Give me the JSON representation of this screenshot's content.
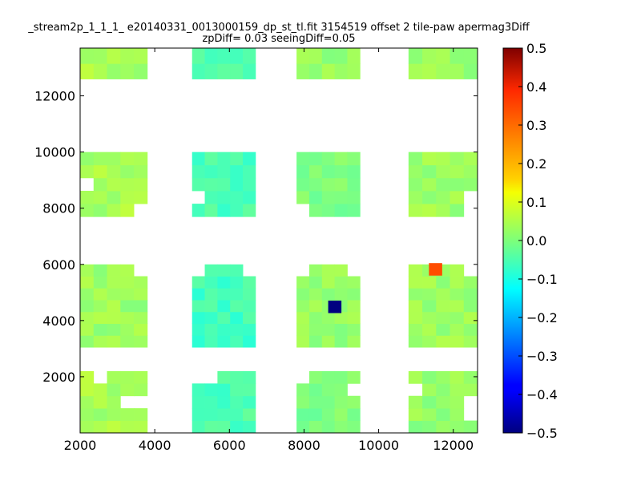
{
  "chart_data": {
    "type": "heatmap",
    "title_line1": "_stream2p_1_1_1_ e20140331_0013000159_dp_st_tl.fit 3154519 offset 2 tile-paw apermag3Diff",
    "title_line2": "zpDiff= 0.03 seeingDiff=0.05",
    "xlabel": "",
    "ylabel": "",
    "xlim": [
      2000,
      12650
    ],
    "ylim": [
      0,
      13700
    ],
    "x_ticks": [
      2000,
      4000,
      6000,
      8000,
      10000,
      12000
    ],
    "y_ticks": [
      2000,
      4000,
      6000,
      8000,
      10000,
      12000
    ],
    "x_tick_labels": [
      "2000",
      "4000",
      "6000",
      "8000",
      "10000",
      "12000"
    ],
    "y_tick_labels": [
      "2000",
      "4000",
      "6000",
      "8000",
      "10000",
      "12000"
    ],
    "cell_size": [
      355,
      445
    ],
    "colormap": "jet",
    "colorbar": {
      "range": [
        -0.5,
        0.5
      ],
      "ticks": [
        -0.5,
        -0.4,
        -0.3,
        -0.2,
        -0.1,
        0.0,
        0.1,
        0.2,
        0.3,
        0.4,
        0.5
      ],
      "tick_labels": [
        "−0.5",
        "−0.4",
        "−0.3",
        "−0.2",
        "−0.1",
        "0.0",
        "0.1",
        "0.2",
        "0.3",
        "0.4",
        "0.5"
      ]
    },
    "outliers": [
      {
        "x": 8825,
        "y": 4488,
        "value": -0.5
      },
      {
        "x": 11525,
        "y": 5823,
        "value": 0.3
      }
    ],
    "tiles": [
      {
        "x0": 2000,
        "y0": 0,
        "x1": 3800,
        "y1": 2200,
        "pattern": 1,
        "value": 0.04,
        "missing": [
          [
            1,
            4
          ],
          [
            3,
            2
          ],
          [
            4,
            2
          ]
        ]
      },
      {
        "x0": 5000,
        "y0": 0,
        "x1": 6700,
        "y1": 2200,
        "pattern": 2,
        "value": -0.05,
        "missing": [
          [
            0,
            4
          ],
          [
            1,
            4
          ]
        ]
      },
      {
        "x0": 7800,
        "y0": 0,
        "x1": 9500,
        "y1": 2200,
        "pattern": 3,
        "value": 0.0,
        "missing": [
          [
            0,
            4
          ],
          [
            4,
            3
          ]
        ]
      },
      {
        "x0": 10800,
        "y0": 0,
        "x1": 12650,
        "y1": 2200,
        "pattern": 4,
        "value": 0.02,
        "missing": [
          [
            0,
            3
          ],
          [
            4,
            1
          ],
          [
            4,
            2
          ]
        ]
      },
      {
        "x0": 2000,
        "y0": 3050,
        "x1": 3800,
        "y1": 6000,
        "pattern": 5,
        "value": 0.03,
        "missing": [
          [
            4,
            6
          ]
        ]
      },
      {
        "x0": 5000,
        "y0": 3050,
        "x1": 6700,
        "y1": 6000,
        "pattern": 6,
        "value": -0.06,
        "missing": [
          [
            0,
            6
          ],
          [
            4,
            6
          ]
        ]
      },
      {
        "x0": 7800,
        "y0": 3050,
        "x1": 9500,
        "y1": 6000,
        "pattern": 7,
        "value": 0.02,
        "missing": [
          [
            0,
            6
          ],
          [
            4,
            6
          ]
        ]
      },
      {
        "x0": 10800,
        "y0": 3050,
        "x1": 12650,
        "y1": 6000,
        "pattern": 8,
        "value": 0.03,
        "missing": [
          [
            4,
            6
          ]
        ]
      },
      {
        "x0": 2000,
        "y0": 7700,
        "x1": 3800,
        "y1": 10000,
        "pattern": 9,
        "value": 0.04,
        "missing": [
          [
            0,
            2
          ],
          [
            4,
            0
          ]
        ]
      },
      {
        "x0": 5000,
        "y0": 7700,
        "x1": 6700,
        "y1": 10000,
        "pattern": 10,
        "value": -0.05,
        "missing": [
          [
            0,
            1
          ]
        ]
      },
      {
        "x0": 7800,
        "y0": 7700,
        "x1": 9500,
        "y1": 10000,
        "pattern": 11,
        "value": 0.0,
        "missing": [
          [
            0,
            0
          ]
        ]
      },
      {
        "x0": 10800,
        "y0": 7700,
        "x1": 12650,
        "y1": 10000,
        "pattern": 12,
        "value": 0.03,
        "missing": [
          [
            4,
            0
          ],
          [
            4,
            1
          ]
        ]
      },
      {
        "x0": 2000,
        "y0": 12600,
        "x1": 3800,
        "y1": 13700,
        "pattern": 13,
        "value": 0.04,
        "missing": []
      },
      {
        "x0": 5000,
        "y0": 12600,
        "x1": 6700,
        "y1": 13700,
        "pattern": 14,
        "value": -0.05,
        "missing": []
      },
      {
        "x0": 7800,
        "y0": 12600,
        "x1": 9500,
        "y1": 13700,
        "pattern": 15,
        "value": 0.02,
        "missing": []
      },
      {
        "x0": 10800,
        "y0": 12600,
        "x1": 12650,
        "y1": 13700,
        "pattern": 16,
        "value": 0.03,
        "missing": []
      }
    ]
  }
}
